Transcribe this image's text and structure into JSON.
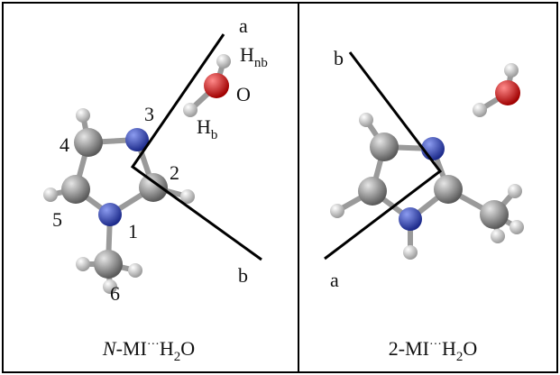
{
  "panels": [
    {
      "axis_labels": [
        "a",
        "b"
      ],
      "labels": [
        {
          "text": "H",
          "sub": "nb"
        },
        {
          "text": "O"
        },
        {
          "text": "H",
          "sub": "b"
        },
        {
          "text": "3"
        },
        {
          "text": "4"
        },
        {
          "text": "2"
        },
        {
          "text": "5"
        },
        {
          "text": "1"
        },
        {
          "text": "6"
        }
      ],
      "caption": [
        "N",
        "-MI",
        "···",
        "H",
        "2",
        "O"
      ]
    },
    {
      "axis_labels": [
        "a",
        "b"
      ],
      "caption": [
        "2-MI",
        "···",
        "H",
        "2",
        "O"
      ]
    }
  ]
}
